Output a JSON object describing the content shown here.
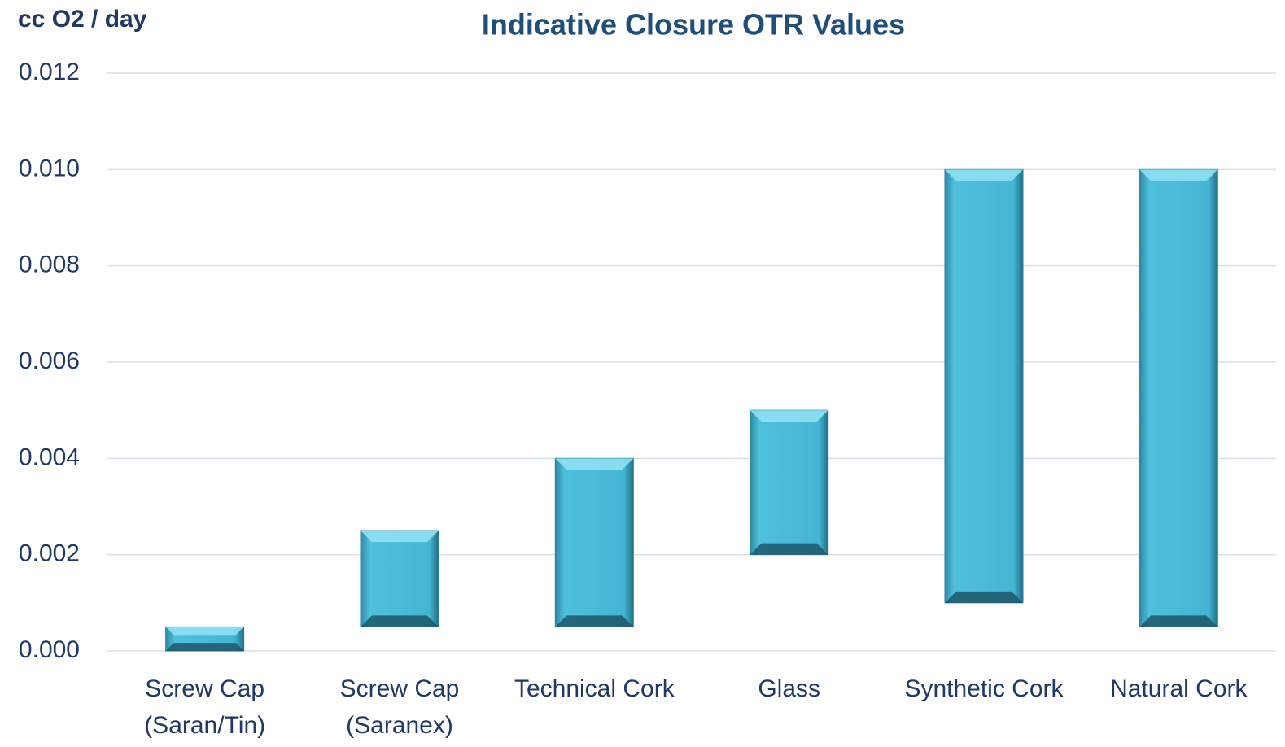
{
  "chart_data": {
    "type": "range_bar",
    "title": "Indicative Closure OTR Values",
    "y_label": "cc O2 / day",
    "categories": [
      [
        "Screw Cap",
        "(Saran/Tin)"
      ],
      [
        "Screw Cap",
        "(Saranex)"
      ],
      [
        "Technical Cork"
      ],
      [
        "Glass"
      ],
      [
        "Synthetic Cork"
      ],
      [
        "Natural Cork"
      ]
    ],
    "low": [
      0,
      0.0005,
      0.0005,
      0.002,
      0.001,
      0.0005
    ],
    "high": [
      0.0005,
      0.0025,
      0.004,
      0.005,
      0.01,
      0.01
    ],
    "color": "#46b8d6",
    "ylim": [
      0,
      0.012
    ],
    "yticks": [
      {
        "value": 0,
        "label": "0.000"
      },
      0.002,
      0.004,
      0.006,
      0.008,
      {
        "value": 0.01,
        "label": "0.010"
      },
      0.012
    ],
    "grid": true
  }
}
